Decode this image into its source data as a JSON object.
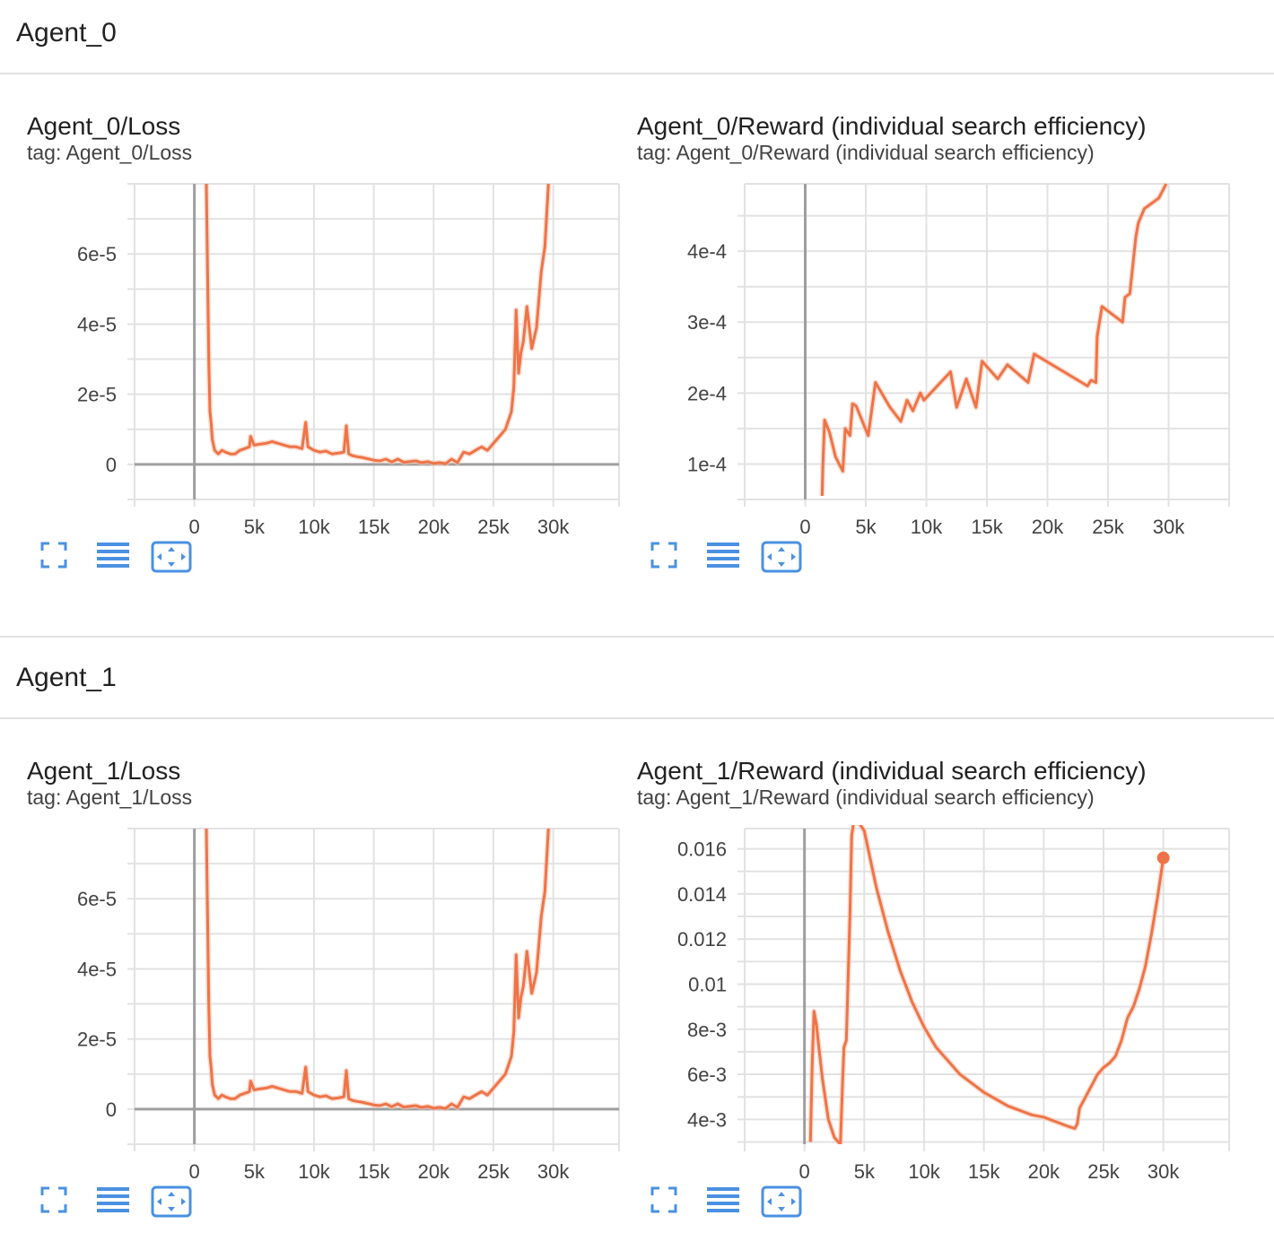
{
  "sections": [
    {
      "title": "Agent_0"
    },
    {
      "title": "Agent_1"
    }
  ],
  "colors": {
    "line": "#ee7447",
    "raw_line": "#f8c7b4",
    "grid": "#e2e2e2",
    "axis": "#9e9e9e",
    "toolbar_icon": "#4a90e2"
  },
  "toolbar": {
    "icons": [
      "fullscreen-icon",
      "data-table-icon",
      "fit-domain-icon"
    ]
  },
  "chart_data": [
    {
      "type": "line",
      "title": "Agent_0/Loss",
      "tag": "tag: Agent_0/Loss",
      "xlim": [
        -5000,
        35500
      ],
      "ylim": [
        -1e-05,
        8e-05
      ],
      "xticks": [
        0,
        5000,
        10000,
        15000,
        20000,
        25000,
        30000
      ],
      "xtick_labels": [
        "0",
        "5k",
        "10k",
        "15k",
        "20k",
        "25k",
        "30k"
      ],
      "yticks": [
        0,
        2e-05,
        4e-05,
        6e-05
      ],
      "ytick_labels": [
        "0",
        "2e-5",
        "4e-5",
        "6e-5"
      ],
      "y_gridlines": [
        -1e-05,
        0,
        1e-05,
        2e-05,
        3e-05,
        4e-05,
        5e-05,
        6e-05,
        7e-05,
        8e-05
      ],
      "series": [
        {
          "x": [
            1000,
            1200,
            1300,
            1400,
            1500,
            1700,
            2000,
            2300,
            2600,
            3000,
            3400,
            3800,
            4200,
            4600,
            4700,
            5000,
            5500,
            6000,
            6500,
            7000,
            7500,
            8000,
            8500,
            9000,
            9300,
            9500,
            10000,
            10500,
            11000,
            11500,
            12000,
            12500,
            12700,
            12900,
            13200,
            13600,
            14000,
            14500,
            15000,
            15500,
            16000,
            16500,
            17000,
            17500,
            18000,
            18500,
            19000,
            19500,
            20000,
            20500,
            21000,
            21500,
            22000,
            22500,
            23000,
            23500,
            24000,
            24500,
            25000,
            25500,
            26000,
            26500,
            26700,
            26900,
            27100,
            27300,
            27500,
            27800,
            28200,
            28600,
            29000,
            29300,
            29600
          ],
          "y": [
            8e-05,
            3e-05,
            1.5e-05,
            1.2e-05,
            7e-06,
            4e-06,
            3e-06,
            4e-06,
            3.5e-06,
            3e-06,
            3e-06,
            4e-06,
            4.5e-06,
            5e-06,
            8e-06,
            5.5e-06,
            5.8e-06,
            6e-06,
            6.5e-06,
            6e-06,
            5.5e-06,
            5e-06,
            5e-06,
            4.5e-06,
            1.2e-05,
            5e-06,
            4e-06,
            3.5e-06,
            3.8e-06,
            3e-06,
            3.2e-06,
            3.5e-06,
            1.1e-05,
            3e-06,
            2.5e-06,
            2.2e-06,
            2e-06,
            1.6e-06,
            1.2e-06,
            1e-06,
            1.5e-06,
            7e-07,
            1.5e-06,
            6e-07,
            8e-07,
            1e-06,
            5e-07,
            8e-07,
            3e-07,
            5e-07,
            2e-07,
            1.5e-06,
            5e-07,
            3.5e-06,
            3e-06,
            4e-06,
            5e-06,
            4e-06,
            6e-06,
            8e-06,
            1e-05,
            1.5e-05,
            2.2e-05,
            4.4e-05,
            2.6e-05,
            3.2e-05,
            3.5e-05,
            4.5e-05,
            3.3e-05,
            3.9e-05,
            5.5e-05,
            6.2e-05,
            8e-05
          ]
        }
      ]
    },
    {
      "type": "line",
      "title": "Agent_0/Reward (individual search efficiency)",
      "tag": "tag: Agent_0/Reward (individual search efficiency)",
      "xlim": [
        -5000,
        35000
      ],
      "ylim": [
        5e-05,
        0.000495
      ],
      "xticks": [
        0,
        5000,
        10000,
        15000,
        20000,
        25000,
        30000
      ],
      "xtick_labels": [
        "0",
        "5k",
        "10k",
        "15k",
        "20k",
        "25k",
        "30k"
      ],
      "yticks": [
        0.0001,
        0.0002,
        0.0003,
        0.0004
      ],
      "ytick_labels": [
        "1e-4",
        "2e-4",
        "3e-4",
        "4e-4"
      ],
      "y_gridlines": [
        5e-05,
        0.0001,
        0.00015,
        0.0002,
        0.00025,
        0.0003,
        0.00035,
        0.0004,
        0.00045
      ],
      "series": [
        {
          "x": [
            1400,
            1450,
            1600,
            2000,
            2500,
            3100,
            3300,
            3700,
            3900,
            4200,
            5200,
            5800,
            7000,
            7900,
            8400,
            8900,
            9500,
            9800,
            12000,
            12500,
            13300,
            14100,
            14600,
            15900,
            16700,
            18400,
            18900,
            23300,
            23600,
            24000,
            24100,
            24500,
            26200,
            26400,
            26800,
            27300,
            27500,
            28000,
            29200,
            29800
          ],
          "y": [
            5.5e-05,
            9.5e-05,
            0.000162,
            0.000145,
            0.00011,
            9e-05,
            0.00015,
            0.00014,
            0.000185,
            0.000182,
            0.00014,
            0.000215,
            0.00018,
            0.00016,
            0.00019,
            0.000175,
            0.0002,
            0.00019,
            0.00023,
            0.00018,
            0.00022,
            0.00018,
            0.000245,
            0.00022,
            0.00024,
            0.000215,
            0.000255,
            0.00021,
            0.000218,
            0.000215,
            0.00028,
            0.000322,
            0.0003,
            0.000335,
            0.00034,
            0.00042,
            0.00044,
            0.00046,
            0.000475,
            0.000495
          ]
        }
      ]
    },
    {
      "type": "line",
      "title": "Agent_1/Loss",
      "tag": "tag: Agent_1/Loss",
      "xlim": [
        -5000,
        35500
      ],
      "ylim": [
        -1e-05,
        8e-05
      ],
      "xticks": [
        0,
        5000,
        10000,
        15000,
        20000,
        25000,
        30000
      ],
      "xtick_labels": [
        "0",
        "5k",
        "10k",
        "15k",
        "20k",
        "25k",
        "30k"
      ],
      "yticks": [
        0,
        2e-05,
        4e-05,
        6e-05
      ],
      "ytick_labels": [
        "0",
        "2e-5",
        "4e-5",
        "6e-5"
      ],
      "y_gridlines": [
        -1e-05,
        0,
        1e-05,
        2e-05,
        3e-05,
        4e-05,
        5e-05,
        6e-05,
        7e-05,
        8e-05
      ],
      "series": [
        {
          "x": [
            1000,
            1200,
            1300,
            1400,
            1500,
            1700,
            2000,
            2300,
            2600,
            3000,
            3400,
            3800,
            4200,
            4600,
            4700,
            5000,
            5500,
            6000,
            6500,
            7000,
            7500,
            8000,
            8500,
            9000,
            9300,
            9500,
            10000,
            10500,
            11000,
            11500,
            12000,
            12500,
            12700,
            12900,
            13200,
            13600,
            14000,
            14500,
            15000,
            15500,
            16000,
            16500,
            17000,
            17500,
            18000,
            18500,
            19000,
            19500,
            20000,
            20500,
            21000,
            21500,
            22000,
            22500,
            23000,
            23500,
            24000,
            24500,
            25000,
            25500,
            26000,
            26500,
            26700,
            26900,
            27100,
            27300,
            27500,
            27800,
            28200,
            28600,
            29000,
            29300,
            29600
          ],
          "y": [
            8e-05,
            3e-05,
            1.5e-05,
            1.2e-05,
            7e-06,
            4e-06,
            3e-06,
            4e-06,
            3.5e-06,
            3e-06,
            3e-06,
            4e-06,
            4.5e-06,
            5e-06,
            8e-06,
            5.5e-06,
            5.8e-06,
            6e-06,
            6.5e-06,
            6e-06,
            5.5e-06,
            5e-06,
            5e-06,
            4.5e-06,
            1.2e-05,
            5e-06,
            4e-06,
            3.5e-06,
            3.8e-06,
            3e-06,
            3.2e-06,
            3.5e-06,
            1.1e-05,
            3e-06,
            2.5e-06,
            2.2e-06,
            2e-06,
            1.6e-06,
            1.2e-06,
            1e-06,
            1.5e-06,
            7e-07,
            1.5e-06,
            6e-07,
            8e-07,
            1e-06,
            5e-07,
            8e-07,
            3e-07,
            5e-07,
            2e-07,
            1.5e-06,
            5e-07,
            3.5e-06,
            3e-06,
            4e-06,
            5e-06,
            4e-06,
            6e-06,
            8e-06,
            1e-05,
            1.5e-05,
            2.2e-05,
            4.4e-05,
            2.6e-05,
            3.2e-05,
            3.5e-05,
            4.5e-05,
            3.3e-05,
            3.9e-05,
            5.5e-05,
            6.2e-05,
            8e-05
          ]
        }
      ]
    },
    {
      "type": "line",
      "title": "Agent_1/Reward (individual search efficiency)",
      "tag": "tag: Agent_1/Reward (individual search efficiency)",
      "xlim": [
        -5000,
        35500
      ],
      "ylim": [
        0.0029,
        0.0169
      ],
      "xticks": [
        0,
        5000,
        10000,
        15000,
        20000,
        25000,
        30000
      ],
      "xtick_labels": [
        "0",
        "5k",
        "10k",
        "15k",
        "20k",
        "25k",
        "30k"
      ],
      "yticks": [
        0.004,
        0.006,
        0.008,
        0.01,
        0.012,
        0.014,
        0.016
      ],
      "ytick_labels": [
        "4e-3",
        "6e-3",
        "8e-3",
        "0.01",
        "0.012",
        "0.014",
        "0.016"
      ],
      "y_gridlines": [
        0.003,
        0.004,
        0.005,
        0.006,
        0.007,
        0.008,
        0.009,
        0.01,
        0.011,
        0.012,
        0.013,
        0.014,
        0.015,
        0.016
      ],
      "series": [
        {
          "x": [
            500,
            650,
            800,
            1000,
            1200,
            1500,
            2000,
            2500,
            3000,
            3200,
            3300,
            3500,
            3800,
            3950,
            4100,
            4500,
            5000,
            6000,
            7000,
            8000,
            9000,
            10000,
            11000,
            12000,
            13000,
            14000,
            15000,
            16000,
            17000,
            18000,
            19000,
            20000,
            21000,
            22000,
            22600,
            22800,
            23000,
            23500,
            24000,
            24500,
            25000,
            25500,
            26000,
            26500,
            27000,
            27500,
            28000,
            28500,
            29000,
            29500,
            30000
          ],
          "y": [
            0.003,
            0.0065,
            0.0088,
            0.0082,
            0.0072,
            0.0058,
            0.004,
            0.0032,
            0.0029,
            0.0058,
            0.0072,
            0.0075,
            0.013,
            0.0166,
            0.0171,
            0.0172,
            0.0168,
            0.0143,
            0.0123,
            0.0106,
            0.0092,
            0.0081,
            0.0072,
            0.0066,
            0.006,
            0.0056,
            0.0052,
            0.0049,
            0.0046,
            0.0044,
            0.0042,
            0.0041,
            0.0039,
            0.0037,
            0.0036,
            0.0038,
            0.0045,
            0.005,
            0.0055,
            0.006,
            0.0063,
            0.0065,
            0.0068,
            0.0075,
            0.0085,
            0.009,
            0.0098,
            0.0108,
            0.0122,
            0.0138,
            0.0156
          ]
        }
      ],
      "end_marker": true
    }
  ]
}
